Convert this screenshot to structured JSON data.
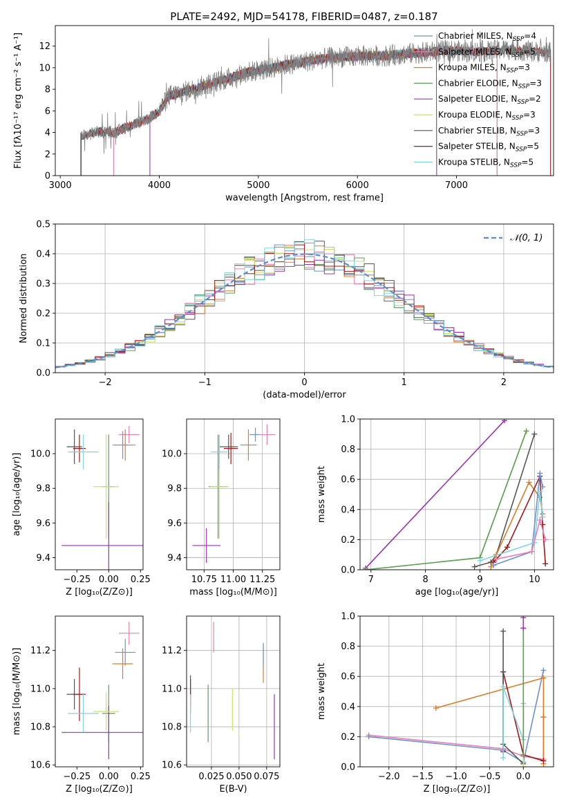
{
  "figure": {
    "title": "PLATE=2492, MJD=54178, FIBERID=0487, z=0.187"
  },
  "colors": {
    "Chabrier MILES": "#6b8fd6",
    "Salpeter MILES": "#e87fb0",
    "Kroupa MILES": "#e07b25",
    "Chabrier ELODIE": "#5a9e5a",
    "Salpeter ELODIE": "#9b30b5",
    "Kroupa ELODIE": "#c8e65a",
    "Chabrier STELIB": "#555555",
    "Salpeter STELIB": "#a51515",
    "Kroupa STELIB": "#7fd6e0",
    "data": "#808080"
  },
  "chart_data": [
    {
      "id": "spectrum",
      "type": "line",
      "xlabel": "wavelength [Angstrom, rest frame]",
      "ylabel": "Flux [fλ10⁻¹⁷ erg cm⁻² s⁻¹ A⁻¹]",
      "xlim": [
        2950,
        7980
      ],
      "ylim": [
        0,
        13.9
      ],
      "xticks": [
        3000,
        4000,
        5000,
        6000,
        7000
      ],
      "yticks": [
        0,
        2,
        4,
        6,
        8,
        10,
        12
      ],
      "grid": false,
      "legend_position": "upper-right",
      "continuum": {
        "x": [
          3200,
          3400,
          3550,
          3700,
          3900,
          4000,
          4100,
          4300,
          4500,
          4700,
          4900,
          5100,
          5300,
          5500,
          5700,
          5900,
          6100,
          6300,
          6500,
          6700,
          6900,
          7100,
          7300,
          7500,
          7800,
          7950
        ],
        "y": [
          3.6,
          4.1,
          4.0,
          4.6,
          5.3,
          6.0,
          7.4,
          7.9,
          8.5,
          9.0,
          9.6,
          9.9,
          10.3,
          10.6,
          10.9,
          11.0,
          11.1,
          11.1,
          11.3,
          11.4,
          11.6,
          11.5,
          11.5,
          11.7,
          11.5,
          11.4
        ]
      },
      "series": [
        {
          "key": "Chabrier MILES",
          "legend": "Chabrier MILES, N",
          "sub": "SSP",
          "n": "=4",
          "start": 3540,
          "end": 7410
        },
        {
          "key": "Salpeter MILES",
          "legend": "Salpeter MILES, N",
          "sub": "SSP",
          "n": "=5",
          "start": 3540,
          "end": 7410
        },
        {
          "key": "Kroupa MILES",
          "legend": "Kroupa MILES, N",
          "sub": "SSP",
          "n": "=3",
          "start": 3540,
          "end": 7410
        },
        {
          "key": "Chabrier ELODIE",
          "legend": "Chabrier ELODIE, N",
          "sub": "SSP",
          "n": "=3",
          "start": 3905,
          "end": 6800
        },
        {
          "key": "Salpeter ELODIE",
          "legend": "Salpeter ELODIE, N",
          "sub": "SSP",
          "n": "=2",
          "start": 3905,
          "end": 6800
        },
        {
          "key": "Kroupa ELODIE",
          "legend": "Kroupa ELODIE, N",
          "sub": "SSP",
          "n": "=3",
          "start": 3905,
          "end": 6800
        },
        {
          "key": "Chabrier STELIB",
          "legend": "Chabrier STELIB, N",
          "sub": "SSP",
          "n": "=3",
          "start": 3210,
          "end": 7950
        },
        {
          "key": "Salpeter STELIB",
          "legend": "Salpeter STELIB, N",
          "sub": "SSP",
          "n": "=5",
          "start": 3210,
          "end": 7950
        },
        {
          "key": "Kroupa STELIB",
          "legend": "Kroupa STELIB, N",
          "sub": "SSP",
          "n": "=5",
          "start": 3210,
          "end": 7950
        }
      ]
    },
    {
      "id": "residuals",
      "type": "line",
      "xlabel": "(data-model)/error",
      "ylabel": "Normed distribution",
      "xlim": [
        -2.5,
        2.5
      ],
      "ylim": [
        0,
        0.5
      ],
      "xticks": [
        -2,
        -1,
        0,
        1,
        2
      ],
      "xtick_labels": [
        "−2",
        "−1",
        "0",
        "1",
        "2"
      ],
      "yticks": [
        0.0,
        0.1,
        0.2,
        0.3,
        0.4,
        0.5
      ],
      "ytick_labels": [
        "0.0",
        "0.1",
        "0.2",
        "0.3",
        "0.4",
        "0.5"
      ],
      "grid": true,
      "bin_width": 0.1,
      "legend": "𝒩(0, 1)",
      "legend_position": "upper-right"
    },
    {
      "id": "z-age",
      "type": "scatter",
      "xlabel": "Z [log₁₀(Z/Z⊙)]",
      "ylabel": "age  [log₁₀(age/yr)]",
      "xlim": [
        -0.42,
        0.27
      ],
      "ylim": [
        9.33,
        10.2
      ],
      "xticks": [
        -0.25,
        0.0,
        0.25
      ],
      "xtick_labels": [
        "−0.25",
        "0.00",
        "0.25"
      ],
      "yticks": [
        9.4,
        9.6,
        9.8,
        10.0
      ],
      "ytick_labels": [
        "9.4",
        "9.6",
        "9.8",
        "10.0"
      ],
      "grid": false,
      "points": [
        {
          "key": "Chabrier MILES",
          "x": 0.11,
          "y": 10.05,
          "xerr": 0.08,
          "yerr": 0.08
        },
        {
          "key": "Salpeter MILES",
          "x": 0.16,
          "y": 10.11,
          "xerr": 0.08,
          "yerr": 0.05
        },
        {
          "key": "Kroupa MILES",
          "x": 0.13,
          "y": 10.05,
          "xerr": 0.08,
          "yerr": 0.09
        },
        {
          "key": "Chabrier ELODIE",
          "x": 0.0,
          "y": 9.81,
          "xerr": 0.05,
          "yerr": 0.3
        },
        {
          "key": "Salpeter ELODIE",
          "x": 0.0,
          "y": 9.47,
          "xerr": 0.37,
          "yerr": 0.25
        },
        {
          "key": "Kroupa ELODIE",
          "x": -0.02,
          "y": 9.81,
          "xerr": 0.1,
          "yerr": 0.3
        },
        {
          "key": "Chabrier STELIB",
          "x": -0.27,
          "y": 10.04,
          "xerr": 0.06,
          "yerr": 0.1
        },
        {
          "key": "Salpeter STELIB",
          "x": -0.23,
          "y": 10.03,
          "xerr": 0.05,
          "yerr": 0.08
        },
        {
          "key": "Kroupa STELIB",
          "x": -0.2,
          "y": 10.01,
          "xerr": 0.12,
          "yerr": 0.1
        }
      ]
    },
    {
      "id": "mass-age",
      "type": "scatter",
      "xlabel": "mass [log₁₀(M/M⊙)]",
      "ylabel": "",
      "xlim": [
        10.6,
        11.4
      ],
      "ylim": [
        9.33,
        10.2
      ],
      "xticks": [
        10.75,
        11.0,
        11.25
      ],
      "xtick_labels": [
        "10.75",
        "11.00",
        "11.25"
      ],
      "yticks": [
        9.4,
        9.6,
        9.8,
        10.0
      ],
      "ytick_labels": [
        "9.4",
        "9.6",
        "9.8",
        "10.0"
      ],
      "grid": true,
      "points": [
        {
          "key": "Chabrier MILES",
          "x": 11.19,
          "y": 10.11,
          "xerr": 0.05,
          "yerr": 0.04
        },
        {
          "key": "Salpeter MILES",
          "x": 11.29,
          "y": 10.11,
          "xerr": 0.07,
          "yerr": 0.06
        },
        {
          "key": "Kroupa MILES",
          "x": 11.13,
          "y": 10.05,
          "xerr": 0.07,
          "yerr": 0.09
        },
        {
          "key": "Chabrier ELODIE",
          "x": 10.87,
          "y": 9.81,
          "xerr": 0.08,
          "yerr": 0.3
        },
        {
          "key": "Salpeter ELODIE",
          "x": 10.77,
          "y": 9.47,
          "xerr": 0.12,
          "yerr": 0.1
        },
        {
          "key": "Kroupa ELODIE",
          "x": 10.88,
          "y": 9.81,
          "xerr": 0.08,
          "yerr": 0.3
        },
        {
          "key": "Chabrier STELIB",
          "x": 10.96,
          "y": 10.04,
          "xerr": 0.08,
          "yerr": 0.07
        },
        {
          "key": "Salpeter STELIB",
          "x": 10.98,
          "y": 10.03,
          "xerr": 0.06,
          "yerr": 0.09
        },
        {
          "key": "Kroupa STELIB",
          "x": 10.88,
          "y": 10.01,
          "xerr": 0.07,
          "yerr": 0.1
        }
      ]
    },
    {
      "id": "age-weight",
      "type": "line",
      "xlabel": "age  [log₁₀(age/yr)]",
      "ylabel": "mass weight",
      "xlim": [
        6.8,
        10.35
      ],
      "ylim": [
        0,
        1.0
      ],
      "xticks": [
        7,
        8,
        9,
        10
      ],
      "yticks": [
        0.0,
        0.2,
        0.4,
        0.6,
        0.8,
        1.0
      ],
      "ytick_labels": [
        "0.0",
        "0.2",
        "0.4",
        "0.6",
        "0.8",
        "1.0"
      ],
      "grid": true,
      "series": [
        {
          "key": "Salpeter ELODIE",
          "x": [
            6.9,
            9.45
          ],
          "y": [
            0.01,
            0.99
          ]
        },
        {
          "key": "Kroupa ELODIE",
          "x": [
            6.9,
            9.0,
            9.85
          ],
          "y": [
            0.0,
            0.08,
            0.92
          ]
        },
        {
          "key": "Chabrier ELODIE",
          "x": [
            6.9,
            9.0,
            9.85
          ],
          "y": [
            0.0,
            0.08,
            0.92
          ]
        },
        {
          "key": "Chabrier STELIB",
          "x": [
            8.9,
            9.2,
            9.3,
            10.0
          ],
          "y": [
            0.02,
            0.05,
            0.1,
            0.9
          ]
        },
        {
          "key": "Kroupa MILES",
          "x": [
            9.2,
            9.3,
            9.9,
            10.1,
            10.15
          ],
          "y": [
            0.02,
            0.1,
            0.58,
            0.48,
            0.37
          ]
        },
        {
          "key": "Salpeter STELIB",
          "x": [
            9.25,
            9.5,
            10.1,
            10.15,
            10.2
          ],
          "y": [
            0.05,
            0.15,
            0.62,
            0.3,
            0.04
          ]
        },
        {
          "key": "Chabrier MILES",
          "x": [
            9.25,
            9.95,
            10.1,
            10.15
          ],
          "y": [
            0.03,
            0.12,
            0.64,
            0.55
          ]
        },
        {
          "key": "Kroupa STELIB",
          "x": [
            9.0,
            10.0,
            10.1,
            10.15
          ],
          "y": [
            0.06,
            0.18,
            0.52,
            0.35
          ]
        },
        {
          "key": "Salpeter MILES",
          "x": [
            9.3,
            9.95,
            10.1,
            10.2
          ],
          "y": [
            0.07,
            0.12,
            0.33,
            0.2
          ]
        }
      ]
    },
    {
      "id": "z-mass",
      "type": "scatter",
      "xlabel": "Z [log₁₀(Z/Z⊙)]",
      "ylabel": "mass [log₁₀(M/M⊙)]",
      "xlim": [
        -0.42,
        0.27
      ],
      "ylim": [
        10.59,
        11.38
      ],
      "xticks": [
        -0.25,
        0.0,
        0.25
      ],
      "xtick_labels": [
        "−0.25",
        "0.00",
        "0.25"
      ],
      "yticks": [
        10.6,
        10.8,
        11.0,
        11.2
      ],
      "ytick_labels": [
        "10.6",
        "10.8",
        "11.0",
        "11.2"
      ],
      "grid": false,
      "points": [
        {
          "key": "Chabrier MILES",
          "x": 0.13,
          "y": 11.19,
          "xerr": 0.08,
          "yerr": 0.07
        },
        {
          "key": "Salpeter MILES",
          "x": 0.16,
          "y": 11.29,
          "xerr": 0.08,
          "yerr": 0.06
        },
        {
          "key": "Kroupa MILES",
          "x": 0.11,
          "y": 11.13,
          "xerr": 0.08,
          "yerr": 0.08
        },
        {
          "key": "Chabrier ELODIE",
          "x": 0.0,
          "y": 10.87,
          "xerr": 0.05,
          "yerr": 0.15
        },
        {
          "key": "Salpeter ELODIE",
          "x": 0.0,
          "y": 10.77,
          "xerr": 0.37,
          "yerr": 0.14
        },
        {
          "key": "Kroupa ELODIE",
          "x": -0.02,
          "y": 10.88,
          "xerr": 0.1,
          "yerr": 0.1
        },
        {
          "key": "Chabrier STELIB",
          "x": -0.27,
          "y": 10.97,
          "xerr": 0.06,
          "yerr": 0.08
        },
        {
          "key": "Salpeter STELIB",
          "x": -0.23,
          "y": 10.97,
          "xerr": 0.05,
          "yerr": 0.14
        },
        {
          "key": "Kroupa STELIB",
          "x": -0.2,
          "y": 10.87,
          "xerr": 0.12,
          "yerr": 0.1
        }
      ]
    },
    {
      "id": "ebv-mass",
      "type": "scatter",
      "xlabel": "E(B-V)",
      "ylabel": "",
      "xlim": [
        0.0025,
        0.087
      ],
      "ylim": [
        10.59,
        11.38
      ],
      "xticks": [
        0.025,
        0.05,
        0.075
      ],
      "xtick_labels": [
        "0.025",
        "0.050",
        "0.075"
      ],
      "yticks": [
        10.6,
        10.8,
        11.0,
        11.2
      ],
      "ytick_labels": [
        "10.6",
        "10.8",
        "11.0",
        "11.2"
      ],
      "grid": true,
      "points": [
        {
          "key": "Salpeter MILES",
          "x": 0.027,
          "y": 11.27,
          "xerr": 0.0,
          "yerr": 0.08
        },
        {
          "key": "Kroupa MILES",
          "x": 0.072,
          "y": 11.13,
          "xerr": 0.0,
          "yerr": 0.1
        },
        {
          "key": "Chabrier MILES",
          "x": 0.072,
          "y": 11.18,
          "xerr": 0.0,
          "yerr": 0.06
        },
        {
          "key": "Chabrier ELODIE",
          "x": 0.022,
          "y": 10.87,
          "xerr": 0.0,
          "yerr": 0.15
        },
        {
          "key": "Salpeter ELODIE",
          "x": 0.082,
          "y": 10.8,
          "xerr": 0.0,
          "yerr": 0.17
        },
        {
          "key": "Kroupa ELODIE",
          "x": 0.044,
          "y": 10.89,
          "xerr": 0.0,
          "yerr": 0.11
        },
        {
          "key": "Chabrier STELIB",
          "x": 0.006,
          "y": 10.97,
          "xerr": 0.0,
          "yerr": 0.1
        },
        {
          "key": "Salpeter STELIB",
          "x": 0.006,
          "y": 10.98,
          "xerr": 0.0,
          "yerr": 0.07
        },
        {
          "key": "Kroupa STELIB",
          "x": 0.006,
          "y": 10.87,
          "xerr": 0.0,
          "yerr": 0.1
        }
      ]
    },
    {
      "id": "z-weight",
      "type": "line",
      "xlabel": "Z [log₁₀(Z/Z⊙)]",
      "ylabel": "mass weight",
      "xlim": [
        -2.43,
        0.45
      ],
      "ylim": [
        0,
        1.0
      ],
      "xticks": [
        -2.0,
        -1.5,
        -1.0,
        -0.5,
        0.0
      ],
      "xtick_labels": [
        "−2.0",
        "−1.5",
        "−1.0",
        "−0.5",
        "0.0"
      ],
      "yticks": [
        0.0,
        0.2,
        0.4,
        0.6,
        0.8,
        1.0
      ],
      "ytick_labels": [
        "0.0",
        "0.2",
        "0.4",
        "0.6",
        "0.8",
        "1.0"
      ],
      "grid": true,
      "series": [
        {
          "key": "Salpeter MILES",
          "x": [
            -2.3,
            -0.3,
            0.0,
            0.3,
            0.3
          ],
          "y": [
            0.21,
            0.12,
            0.07,
            0.05,
            0.33
          ]
        },
        {
          "key": "Chabrier MILES",
          "x": [
            -2.3,
            -0.3,
            0.0,
            0.3
          ],
          "y": [
            0.2,
            0.11,
            0.03,
            0.64
          ]
        },
        {
          "key": "Kroupa MILES",
          "x": [
            -1.3,
            0.3,
            0.3,
            0.3
          ],
          "y": [
            0.39,
            0.59,
            0.02,
            0.33
          ]
        },
        {
          "key": "Salpeter STELIB",
          "x": [
            -0.3,
            -0.3,
            0.0,
            0.3
          ],
          "y": [
            0.1,
            0.63,
            0.08,
            0.04
          ]
        },
        {
          "key": "Chabrier STELIB",
          "x": [
            -0.3,
            -0.3,
            0.0
          ],
          "y": [
            0.9,
            0.15,
            0.02
          ]
        },
        {
          "key": "Kroupa STELIB",
          "x": [
            -0.3,
            -0.3,
            0.0,
            0.0
          ],
          "y": [
            0.06,
            0.53,
            0.18,
            0.42
          ]
        },
        {
          "key": "Kroupa ELODIE",
          "x": [
            0.0,
            0.0,
            0.0
          ],
          "y": [
            0.0,
            0.92,
            0.08
          ]
        },
        {
          "key": "Chabrier ELODIE",
          "x": [
            0.0,
            0.0
          ],
          "y": [
            0.08,
            0.92
          ]
        },
        {
          "key": "Salpeter ELODIE",
          "x": [
            0.0,
            0.0
          ],
          "y": [
            0.99,
            0.92
          ]
        }
      ]
    }
  ]
}
